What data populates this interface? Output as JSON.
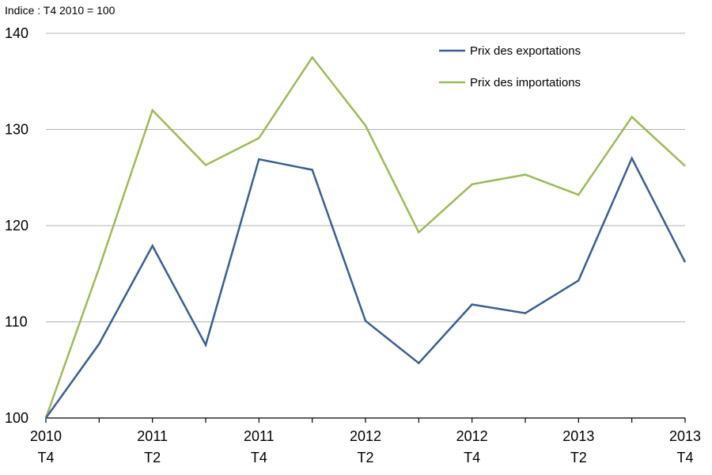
{
  "chart_data": {
    "type": "line",
    "unit_label": "Indice : T4 2010 = 100",
    "ylim": [
      100,
      140
    ],
    "yticks": [
      100,
      110,
      120,
      130,
      140
    ],
    "grid": "horizontal",
    "legend_position": "top-right",
    "x_ticks": [
      {
        "year": "2010",
        "quarter": "T4"
      },
      {
        "year": "2011",
        "quarter": "T2"
      },
      {
        "year": "2011",
        "quarter": "T4"
      },
      {
        "year": "2012",
        "quarter": "T2"
      },
      {
        "year": "2012",
        "quarter": "T4"
      },
      {
        "year": "2013",
        "quarter": "T2"
      },
      {
        "year": "2013",
        "quarter": "T4"
      }
    ],
    "x": [
      "2010 T4",
      "2011 T1",
      "2011 T2",
      "2011 T3",
      "2011 T4",
      "2012 T1",
      "2012 T2",
      "2012 T3",
      "2012 T4",
      "2013 T1",
      "2013 T2",
      "2013 T3",
      "2013 T4"
    ],
    "series": [
      {
        "name": "Prix des exportations",
        "color": "#3A5F8F",
        "values": [
          100,
          107.7,
          117.9,
          107.6,
          126.9,
          125.8,
          110.1,
          105.7,
          111.8,
          110.9,
          114.3,
          127.0,
          116.2
        ]
      },
      {
        "name": "Prix des importations",
        "color": "#9BBB59",
        "values": [
          100,
          115.6,
          132.0,
          126.3,
          129.1,
          137.5,
          130.4,
          119.3,
          124.3,
          125.3,
          123.2,
          131.3,
          126.2
        ]
      }
    ]
  }
}
